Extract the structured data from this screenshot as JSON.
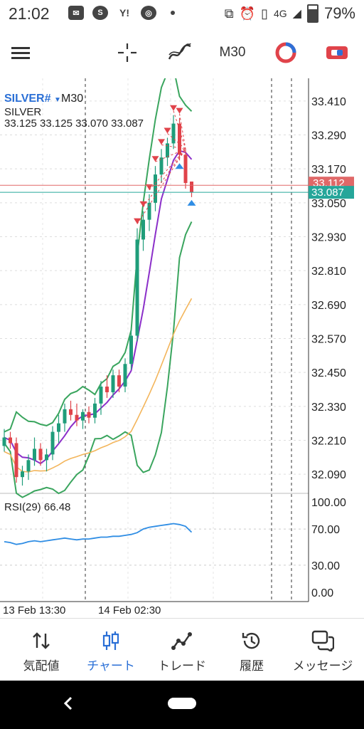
{
  "status_bar": {
    "time": "21:02",
    "network": "4G",
    "battery": "79%",
    "icons": [
      "chat-icon",
      "skype-icon",
      "yahoo-icon",
      "chrome-icon",
      "dot-icon",
      "cast-icon",
      "alarm-icon",
      "vibrate-icon",
      "signal-icon",
      "battery-icon"
    ]
  },
  "toolbar": {
    "timeframe": "M30",
    "icons": [
      "menu-icon",
      "crosshair-icon",
      "indicator-icon",
      "objects-icon",
      "trade-icon"
    ]
  },
  "chart": {
    "symbol": "SILVER#",
    "symbol_timeframe": "M30",
    "description": "SILVER",
    "ohlc": "33.125 33.125 33.070 33.087",
    "price_labels": [
      "33.410",
      "33.290",
      "33.170",
      "33.050",
      "32.930",
      "32.810",
      "32.690",
      "32.570",
      "32.450",
      "32.330",
      "32.210",
      "32.090"
    ],
    "bid_label": "33.112",
    "ask_label": "33.087",
    "rsi_label": "RSI(29) 66.48",
    "rsi_levels": [
      "100.00",
      "70.00",
      "30.00",
      "0.00"
    ],
    "time_labels": [
      "13 Feb 13:30",
      "14 Feb 02:30"
    ],
    "colors": {
      "bull": "#1f9d7a",
      "bear": "#e0434a",
      "bollinger": "#3aa55e",
      "ma_fast": "#8b2fc9",
      "ma_slow": "#f3b55b",
      "rsi": "#2f8de4",
      "bid_line": "#e06868",
      "ask_line": "#26a69a"
    }
  },
  "chart_data": {
    "type": "candlestick",
    "symbol": "SILVER#",
    "timeframe": "M30",
    "last_ohlc": {
      "open": 33.125,
      "high": 33.125,
      "low": 33.07,
      "close": 33.087
    },
    "ylim": [
      32.03,
      33.47
    ],
    "y_ticks": [
      33.41,
      33.29,
      33.17,
      33.05,
      32.93,
      32.81,
      32.69,
      32.57,
      32.45,
      32.33,
      32.21,
      32.09
    ],
    "bid": 33.112,
    "ask": 33.087,
    "x_ticks": [
      "13 Feb 13:30",
      "14 Feb 02:30"
    ],
    "candles": [
      {
        "o": 32.19,
        "h": 32.25,
        "l": 32.17,
        "c": 32.22
      },
      {
        "o": 32.22,
        "h": 32.24,
        "l": 32.18,
        "c": 32.2
      },
      {
        "o": 32.2,
        "h": 32.22,
        "l": 32.06,
        "c": 32.08
      },
      {
        "o": 32.08,
        "h": 32.12,
        "l": 32.05,
        "c": 32.1
      },
      {
        "o": 32.1,
        "h": 32.16,
        "l": 32.07,
        "c": 32.14
      },
      {
        "o": 32.14,
        "h": 32.22,
        "l": 32.12,
        "c": 32.18
      },
      {
        "o": 32.18,
        "h": 32.2,
        "l": 32.12,
        "c": 32.14
      },
      {
        "o": 32.14,
        "h": 32.18,
        "l": 32.1,
        "c": 32.16
      },
      {
        "o": 32.16,
        "h": 32.26,
        "l": 32.14,
        "c": 32.24
      },
      {
        "o": 32.24,
        "h": 32.3,
        "l": 32.2,
        "c": 32.27
      },
      {
        "o": 32.27,
        "h": 32.34,
        "l": 32.24,
        "c": 32.32
      },
      {
        "o": 32.32,
        "h": 32.35,
        "l": 32.28,
        "c": 32.3
      },
      {
        "o": 32.3,
        "h": 32.34,
        "l": 32.26,
        "c": 32.28
      },
      {
        "o": 32.28,
        "h": 32.32,
        "l": 32.25,
        "c": 32.31
      },
      {
        "o": 32.31,
        "h": 32.33,
        "l": 32.27,
        "c": 32.29
      },
      {
        "o": 32.29,
        "h": 32.36,
        "l": 32.27,
        "c": 32.34
      },
      {
        "o": 32.34,
        "h": 32.42,
        "l": 32.3,
        "c": 32.4
      },
      {
        "o": 32.4,
        "h": 32.44,
        "l": 32.36,
        "c": 32.38
      },
      {
        "o": 32.38,
        "h": 32.46,
        "l": 32.36,
        "c": 32.44
      },
      {
        "o": 32.44,
        "h": 32.46,
        "l": 32.38,
        "c": 32.4
      },
      {
        "o": 32.4,
        "h": 32.5,
        "l": 32.38,
        "c": 32.48
      },
      {
        "o": 32.48,
        "h": 32.6,
        "l": 32.46,
        "c": 32.58
      },
      {
        "o": 32.58,
        "h": 32.96,
        "l": 32.56,
        "c": 32.92
      },
      {
        "o": 32.92,
        "h": 33.02,
        "l": 32.88,
        "c": 32.99
      },
      {
        "o": 32.99,
        "h": 33.08,
        "l": 32.95,
        "c": 33.05
      },
      {
        "o": 33.05,
        "h": 33.18,
        "l": 33.02,
        "c": 33.15
      },
      {
        "o": 33.15,
        "h": 33.24,
        "l": 33.12,
        "c": 33.21
      },
      {
        "o": 33.21,
        "h": 33.28,
        "l": 33.18,
        "c": 33.26
      },
      {
        "o": 33.26,
        "h": 33.36,
        "l": 33.24,
        "c": 33.33
      },
      {
        "o": 33.33,
        "h": 33.35,
        "l": 33.2,
        "c": 33.22
      },
      {
        "o": 33.22,
        "h": 33.24,
        "l": 33.1,
        "c": 33.12
      },
      {
        "o": 33.125,
        "h": 33.125,
        "l": 33.07,
        "c": 33.087
      }
    ],
    "rsi": {
      "name": "RSI(29)",
      "last": 66.48,
      "ylim": [
        0,
        100
      ],
      "levels": [
        70,
        30
      ],
      "values": [
        56,
        55,
        53,
        54,
        56,
        57,
        56,
        57,
        58,
        59,
        60,
        59,
        58,
        59,
        59,
        60,
        61,
        61,
        62,
        62,
        63,
        64,
        66,
        70,
        72,
        73,
        74,
        75,
        76,
        75,
        73,
        66.48
      ]
    }
  },
  "bottom_nav": {
    "items": [
      {
        "label": "気配値",
        "icon": "quotes-icon"
      },
      {
        "label": "チャート",
        "icon": "chart-icon"
      },
      {
        "label": "トレード",
        "icon": "trade-icon"
      },
      {
        "label": "履歴",
        "icon": "history-icon"
      },
      {
        "label": "メッセージ",
        "icon": "messages-icon"
      }
    ],
    "active_index": 1
  }
}
